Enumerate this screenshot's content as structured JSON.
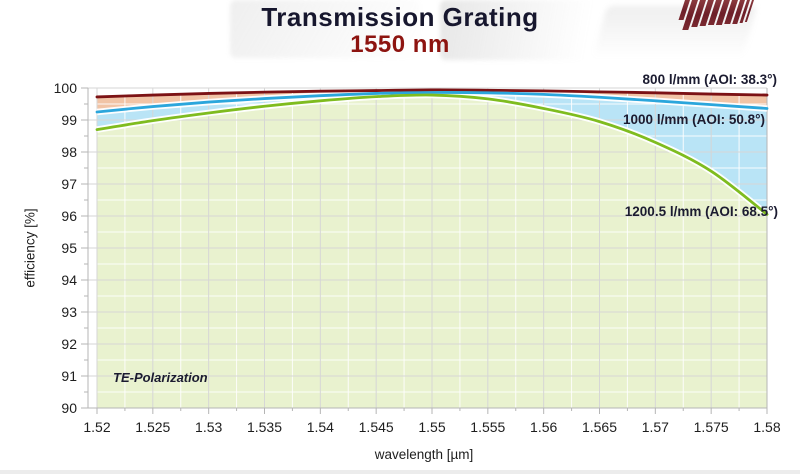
{
  "page": {
    "background": "#ffffff",
    "bottom_strip_color": "#ececec"
  },
  "header": {
    "title": "Transmission Grating",
    "subtitle": "1550 nm",
    "title_color": "#17172e",
    "subtitle_color": "#8d1410",
    "logo_name": "grating-stripes-logo",
    "logo_color": "#7a2930",
    "logo_bar_heights": [
      20,
      30,
      27,
      26,
      25,
      25,
      24,
      24,
      23,
      22
    ],
    "logo_bar_widths": [
      5,
      6,
      6,
      6,
      6,
      6,
      6,
      5,
      3,
      2
    ]
  },
  "chart_data": {
    "type": "area",
    "title": "Transmission Grating 1550 nm",
    "xlabel": "wavelength [µm]",
    "ylabel": "efficiency [%]",
    "annotation": "TE-Polarization",
    "xlim": [
      1.52,
      1.58
    ],
    "ylim": [
      90,
      100
    ],
    "grid": "on",
    "legend_position": "inline-labels-right",
    "x_tick_labels": [
      "1.52",
      "1.525",
      "1.53",
      "1.535",
      "1.54",
      "1.545",
      "1.55",
      "1.555",
      "1.56",
      "1.565",
      "1.57",
      "1.575",
      "1.58"
    ],
    "y_tick_labels": [
      "90",
      "91",
      "92",
      "93",
      "94",
      "95",
      "96",
      "97",
      "98",
      "99",
      "100"
    ],
    "x_minor_step": 0.0025,
    "y_minor_step": 0.5,
    "x": [
      1.52,
      1.525,
      1.53,
      1.535,
      1.54,
      1.545,
      1.55,
      1.555,
      1.56,
      1.565,
      1.57,
      1.575,
      1.58
    ],
    "series": [
      {
        "name": "800 l/mm (AOI: 38.3°)",
        "lines_per_mm": "800 l/mm",
        "aoi": "38.3°",
        "line_color": "#7c1215",
        "fill_color": "#f1c4a6",
        "values": [
          99.72,
          99.78,
          99.83,
          99.87,
          99.9,
          99.92,
          99.94,
          99.93,
          99.91,
          99.88,
          99.85,
          99.81,
          99.78
        ]
      },
      {
        "name": "1000 l/mm (AOI: 50.8°)",
        "lines_per_mm": "1000 l/mm",
        "aoi": "50.8°",
        "line_color": "#2ba6dc",
        "fill_color": "#b9e4f6",
        "values": [
          99.25,
          99.42,
          99.56,
          99.67,
          99.76,
          99.83,
          99.86,
          99.85,
          99.8,
          99.71,
          99.6,
          99.48,
          99.36
        ]
      },
      {
        "name": "1200.5 l/mm (AOI: 68.5°)",
        "lines_per_mm": "1200.5 l/mm",
        "aoi": "68.5°",
        "line_color": "#7fbc1f",
        "fill_color": "#e9f2cf",
        "values": [
          98.7,
          98.98,
          99.22,
          99.43,
          99.6,
          99.73,
          99.78,
          99.66,
          99.36,
          98.95,
          98.3,
          97.4,
          96.05
        ]
      }
    ],
    "style": {
      "grid_major_color": "#d6d6d6",
      "grid_minor_color": "#ffffff",
      "axis_color": "#b5b5b5",
      "tick_label_color": "#1e1e1e"
    }
  }
}
